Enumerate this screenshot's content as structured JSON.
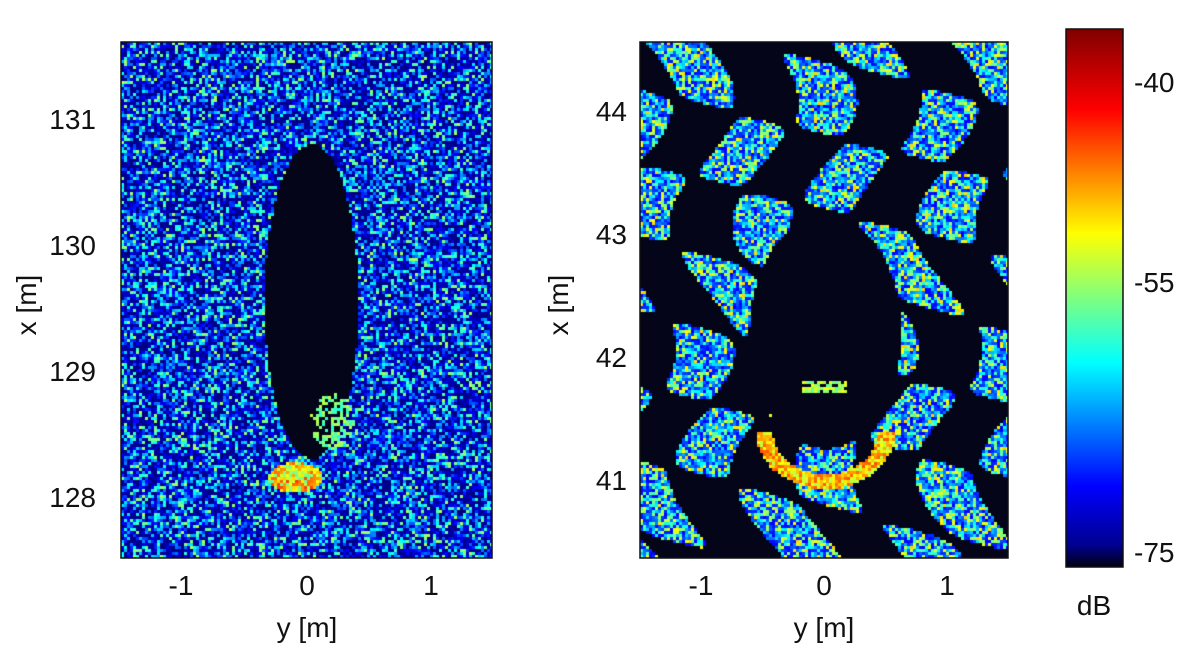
{
  "chart_data": [
    {
      "type": "heatmap",
      "xlabel": "y [m]",
      "ylabel": "x [m]",
      "xlim": [
        -1.5,
        1.5
      ],
      "ylim": [
        127.5,
        131.6
      ],
      "xticks": [
        -1,
        0,
        1
      ],
      "yticks": [
        128,
        129,
        130,
        131
      ],
      "xtick_labels": [
        "-1",
        "0",
        "1"
      ],
      "ytick_labels": [
        "128",
        "129",
        "130",
        "131"
      ],
      "colormap": "jet",
      "features": {
        "shadow": {
          "shape": "ellipse",
          "center_y": 0.03,
          "center_x": 129.55,
          "half_width_y": 0.38,
          "half_length_x": 1.25
        },
        "bright_return": {
          "center_y": -0.1,
          "center_x": 128.15,
          "level_db": -48
        }
      }
    },
    {
      "type": "heatmap",
      "xlabel": "y [m]",
      "ylabel": "x [m]",
      "xlim": [
        -1.5,
        1.5
      ],
      "ylim": [
        40.35,
        44.55
      ],
      "xticks": [
        -1,
        0,
        1
      ],
      "yticks": [
        41,
        42,
        43,
        44
      ],
      "xtick_labels": [
        "-1",
        "0",
        "1"
      ],
      "ytick_labels": [
        "41",
        "42",
        "43",
        "44"
      ],
      "colormap": "jet",
      "features": {
        "shadow": {
          "shape": "ellipse",
          "center_y": 0.0,
          "center_x": 42.2,
          "half_width_y": 0.62,
          "half_length_x": 0.95
        },
        "bright_arc": {
          "center_y": 0.0,
          "center_x": 41.4,
          "radius_m": 0.5,
          "level_db": -47
        }
      }
    }
  ],
  "colorbar": {
    "label": "dB",
    "range": [
      -77,
      -37
    ],
    "ticks": [
      -40,
      -55,
      -75
    ],
    "tick_labels": [
      "-40",
      "-55",
      "-75"
    ],
    "colormap": "jet"
  },
  "colors": {
    "background": "#0a1440",
    "shadow": "#05061a",
    "text": "#111111"
  }
}
